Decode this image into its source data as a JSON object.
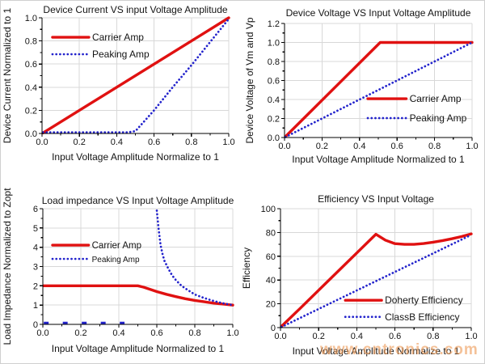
{
  "page": {
    "watermark": "www.cntronics.com",
    "background": "#ffffff"
  },
  "colors": {
    "carrier": "#e01111",
    "peaking": "#2323cc",
    "grid": "#d8d8d8",
    "axis": "#000000",
    "text": "#141414",
    "watermark": "#ee9c5a"
  },
  "chart_data": [
    {
      "type": "line",
      "title": "Device Current VS input Voltage Amplitude",
      "xlabel": "Input Voltage Amplitude Normalize to 1",
      "ylabel": "Device Current Normalized to 1",
      "xlim": [
        0,
        1
      ],
      "ylim": [
        0,
        1
      ],
      "xticks": [
        0,
        0.2,
        0.4,
        0.6,
        0.8,
        1
      ],
      "yticks": [
        0,
        0.2,
        0.4,
        0.6,
        0.8,
        1
      ],
      "xtick_labels": [
        "0.0",
        "0.2",
        "0.4",
        "0.6",
        "0.8",
        "1.0"
      ],
      "ytick_labels": [
        "0.0",
        "0.2",
        "0.4",
        "0.6",
        "0.8",
        "1.0"
      ],
      "grid": true,
      "legend_position": "top-left",
      "series": [
        {
          "name": "Carrier Amp",
          "color": "#e01111",
          "style": "solid",
          "paths": [
            {
              "points": [
                [
                  0.005,
                  0.005
                ],
                [
                  1,
                  1
                ]
              ]
            }
          ]
        },
        {
          "name": "Peaking Amp",
          "color": "#2323cc",
          "style": "dotted",
          "paths": [
            {
              "points": [
                [
                  0.005,
                  0.01
                ],
                [
                  0.46,
                  0.01
                ],
                [
                  0.5,
                  0.02
                ],
                [
                  0.55,
                  0.11
                ],
                [
                  0.6,
                  0.2
                ],
                [
                  0.7,
                  0.4
                ],
                [
                  0.8,
                  0.59
                ],
                [
                  0.9,
                  0.79
                ],
                [
                  1,
                  0.99
                ]
              ]
            }
          ]
        }
      ]
    },
    {
      "type": "line",
      "title": "Device Voltage VS Input Voltage Amplitude",
      "xlabel": "Input Voltage Amplitude Normalized to 1",
      "ylabel": "Device Voltage of Vm and Vp",
      "xlim": [
        0,
        1
      ],
      "ylim": [
        0,
        1.2
      ],
      "xticks": [
        0,
        0.2,
        0.4,
        0.6,
        0.8,
        1
      ],
      "yticks": [
        0,
        0.2,
        0.4,
        0.6,
        0.8,
        1,
        1.2
      ],
      "xtick_labels": [
        "0.0",
        "0.2",
        "0.4",
        "0.6",
        "0.8",
        "1.0"
      ],
      "ytick_labels": [
        "0.0",
        "0.2",
        "0.4",
        "0.6",
        "0.8",
        "1.0",
        "1.2"
      ],
      "grid": true,
      "legend_position": "right-middle",
      "series": [
        {
          "name": "Carrier Amp",
          "color": "#e01111",
          "style": "solid",
          "paths": [
            {
              "points": [
                [
                  0.005,
                  0.01
                ],
                [
                  0.51,
                  1.0
                ],
                [
                  1,
                  1.0
                ]
              ]
            }
          ]
        },
        {
          "name": "Peaking Amp",
          "color": "#2323cc",
          "style": "dotted",
          "paths": [
            {
              "points": [
                [
                  0.005,
                  0.005
                ],
                [
                  1,
                  1
                ]
              ]
            }
          ]
        }
      ]
    },
    {
      "type": "line",
      "title": "Load impedance VS Input Voltage Amplitude",
      "xlabel": "Input Voltage Amplitude Normalized to 1",
      "ylabel": "Load Impedance Normalized to Zopt",
      "xlim": [
        0,
        1
      ],
      "ylim": [
        0,
        6
      ],
      "xticks": [
        0,
        0.2,
        0.4,
        0.6,
        0.8,
        1
      ],
      "yticks": [
        0,
        1,
        2,
        3,
        4,
        5,
        6
      ],
      "xtick_labels": [
        "0.0",
        "0.2",
        "0.4",
        "0.6",
        "0.8",
        "1.0"
      ],
      "ytick_labels": [
        "0",
        "1",
        "2",
        "3",
        "4",
        "5",
        "6"
      ],
      "grid": true,
      "legend_position": "top-left",
      "series": [
        {
          "name": "Carrier Amp",
          "color": "#e01111",
          "style": "solid",
          "paths": [
            {
              "points": [
                [
                  0.005,
                  2
                ],
                [
                  0.5,
                  2
                ],
                [
                  0.53,
                  1.93
                ],
                [
                  0.57,
                  1.8
                ],
                [
                  0.6,
                  1.7
                ],
                [
                  0.65,
                  1.56
                ],
                [
                  0.7,
                  1.44
                ],
                [
                  0.75,
                  1.33
                ],
                [
                  0.8,
                  1.24
                ],
                [
                  0.85,
                  1.17
                ],
                [
                  0.9,
                  1.1
                ],
                [
                  0.95,
                  1.05
                ],
                [
                  1,
                  1
                ]
              ]
            }
          ]
        },
        {
          "name": "Peaking Amp",
          "color": "#2323cc",
          "style": "dotted",
          "paths": [
            {
              "style": "dashes",
              "points": [
                [
                  0.005,
                  0.07
                ],
                [
                  0.43,
                  0.07
                ]
              ]
            },
            {
              "points": [
                [
                  0.6,
                  5.9
                ],
                [
                  0.605,
                  5.4
                ],
                [
                  0.61,
                  4.9
                ],
                [
                  0.615,
                  4.5
                ],
                [
                  0.62,
                  4.1
                ],
                [
                  0.63,
                  3.65
                ],
                [
                  0.64,
                  3.3
                ],
                [
                  0.66,
                  2.9
                ],
                [
                  0.68,
                  2.55
                ],
                [
                  0.7,
                  2.3
                ],
                [
                  0.73,
                  2.0
                ],
                [
                  0.76,
                  1.8
                ],
                [
                  0.8,
                  1.55
                ],
                [
                  0.84,
                  1.4
                ],
                [
                  0.88,
                  1.27
                ],
                [
                  0.92,
                  1.16
                ],
                [
                  0.96,
                  1.07
                ],
                [
                  1,
                  1.0
                ]
              ]
            }
          ]
        }
      ]
    },
    {
      "type": "line",
      "title": "Efficiency VS Input Voltage",
      "xlabel": "Input Voltage Amplitude Normalize to 1",
      "ylabel": "Efficiency",
      "xlim": [
        0,
        1
      ],
      "ylim": [
        0,
        100
      ],
      "xticks": [
        0,
        0.2,
        0.4,
        0.6,
        0.8,
        1
      ],
      "yticks": [
        0,
        20,
        40,
        60,
        80,
        100
      ],
      "xtick_labels": [
        "0.0",
        "0.2",
        "0.4",
        "0.6",
        "0.8",
        "1.0"
      ],
      "ytick_labels": [
        "0",
        "20",
        "40",
        "60",
        "80",
        "100"
      ],
      "grid": true,
      "legend_position": "bottom-right",
      "series": [
        {
          "name": "Doherty Efficiency",
          "color": "#e01111",
          "style": "solid",
          "paths": [
            {
              "points": [
                [
                  0.005,
                  1
                ],
                [
                  0.1,
                  15.7
                ],
                [
                  0.2,
                  31.4
                ],
                [
                  0.3,
                  47.1
                ],
                [
                  0.4,
                  62.8
                ],
                [
                  0.5,
                  78.5
                ],
                [
                  0.55,
                  73.5
                ],
                [
                  0.6,
                  70.6
                ],
                [
                  0.65,
                  70
                ],
                [
                  0.7,
                  70
                ],
                [
                  0.75,
                  70.7
                ],
                [
                  0.8,
                  71.8
                ],
                [
                  0.85,
                  73.2
                ],
                [
                  0.9,
                  74.8
                ],
                [
                  0.95,
                  76.6
                ],
                [
                  1,
                  78.8
                ]
              ]
            }
          ]
        },
        {
          "name": "ClassB Efficiency",
          "color": "#2323cc",
          "style": "dotted",
          "paths": [
            {
              "points": [
                [
                  0.005,
                  0.5
                ],
                [
                  1,
                  78
                ]
              ]
            }
          ]
        }
      ]
    }
  ]
}
